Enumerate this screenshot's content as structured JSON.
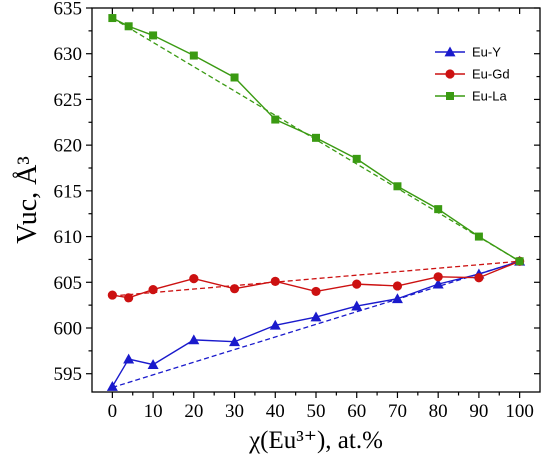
{
  "chart_data": {
    "type": "line",
    "xlabel": "χ(Eu³⁺), at.%",
    "ylabel": "Vuc, Å³",
    "xlim": [
      -5,
      105
    ],
    "ylim": [
      593,
      635
    ],
    "xticks": [
      0,
      10,
      20,
      30,
      40,
      50,
      60,
      70,
      80,
      90,
      100
    ],
    "yticks": [
      595,
      600,
      605,
      610,
      615,
      620,
      625,
      630,
      635
    ],
    "legend_position": "top-right",
    "grid": false,
    "series": [
      {
        "name": "Eu-Y",
        "color": "#1a1acc",
        "marker": "triangle",
        "x": [
          0,
          4,
          10,
          20,
          30,
          40,
          50,
          60,
          70,
          80,
          90,
          100
        ],
        "y": [
          593.6,
          596.6,
          596.0,
          598.7,
          598.5,
          600.3,
          601.2,
          602.4,
          603.2,
          604.8,
          605.9,
          607.3
        ],
        "fit": [
          [
            0,
            593.5
          ],
          [
            100,
            607.3
          ]
        ]
      },
      {
        "name": "Eu-Gd",
        "color": "#cc1111",
        "marker": "circle",
        "x": [
          0,
          4,
          10,
          20,
          30,
          40,
          50,
          60,
          70,
          80,
          90,
          100
        ],
        "y": [
          603.6,
          603.3,
          604.2,
          605.4,
          604.3,
          605.1,
          604.0,
          604.8,
          604.6,
          605.6,
          605.5,
          607.3
        ],
        "fit": [
          [
            0,
            603.5
          ],
          [
            100,
            607.3
          ]
        ]
      },
      {
        "name": "Eu-La",
        "color": "#3a9a12",
        "marker": "square",
        "x": [
          0,
          4,
          10,
          20,
          30,
          40,
          50,
          60,
          70,
          80,
          90,
          100
        ],
        "y": [
          633.9,
          633.0,
          632.0,
          629.8,
          627.4,
          622.8,
          620.8,
          618.5,
          615.5,
          613.0,
          610.0,
          607.3
        ],
        "fit": [
          [
            0,
            633.9
          ],
          [
            100,
            607.3
          ]
        ]
      }
    ]
  }
}
